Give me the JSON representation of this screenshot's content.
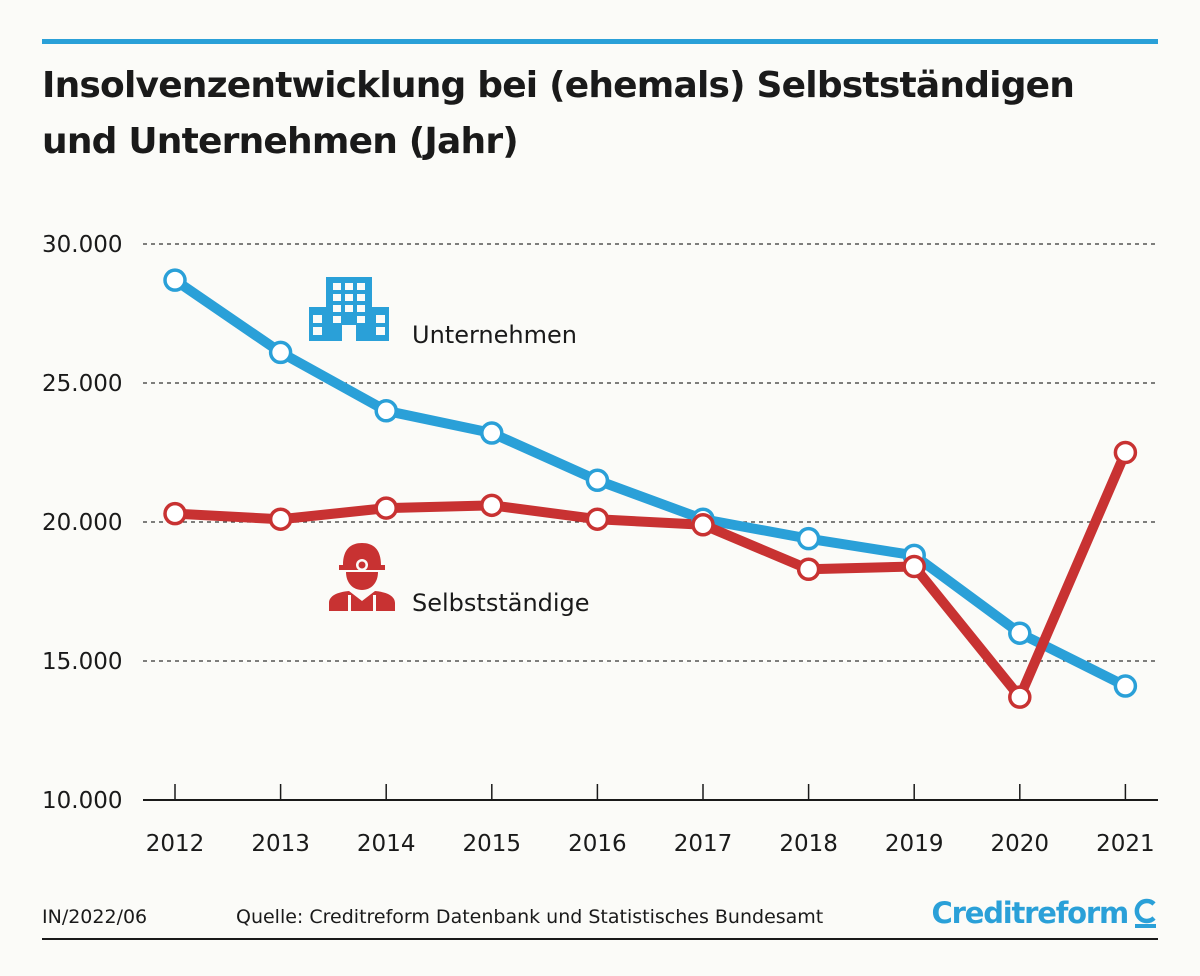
{
  "title_line1": "Insolvenzentwicklung bei (ehemals) Selbstständigen",
  "title_line2": "und Unternehmen (Jahr)",
  "footer": {
    "code": "IN/2022/06",
    "source": "Quelle: Creditreform Datenbank und Statistisches Bundesamt",
    "brand": "Creditreform"
  },
  "colors": {
    "accent_blue": "#2aa0d8",
    "accent_red": "#c83232",
    "grid": "#333333"
  },
  "icons": {
    "unternehmen": "office-building-icon",
    "selbststaendige": "construction-worker-icon",
    "brand": "creditreform-c-icon"
  },
  "chart_data": {
    "type": "line",
    "title": "Insolvenzentwicklung bei (ehemals) Selbstständigen und Unternehmen (Jahr)",
    "categories": [
      "2012",
      "2013",
      "2014",
      "2015",
      "2016",
      "2017",
      "2018",
      "2019",
      "2020",
      "2021"
    ],
    "ylim": [
      10000,
      30000
    ],
    "yticks": [
      10000,
      15000,
      20000,
      25000,
      30000
    ],
    "ytick_labels": [
      "10.000",
      "15.000",
      "20.000",
      "25.000",
      "30.000"
    ],
    "grid": "dashed horizontal",
    "legend": "inline labels with icons",
    "series": [
      {
        "name": "Unternehmen",
        "color": "#2aa0d8",
        "values": [
          28700,
          26100,
          24000,
          23200,
          21500,
          20100,
          19400,
          18800,
          16000,
          14100
        ]
      },
      {
        "name": "Selbstständige",
        "color": "#c83232",
        "values": [
          20300,
          20100,
          20500,
          20600,
          20100,
          19900,
          18300,
          18400,
          13700,
          22500
        ]
      }
    ]
  }
}
